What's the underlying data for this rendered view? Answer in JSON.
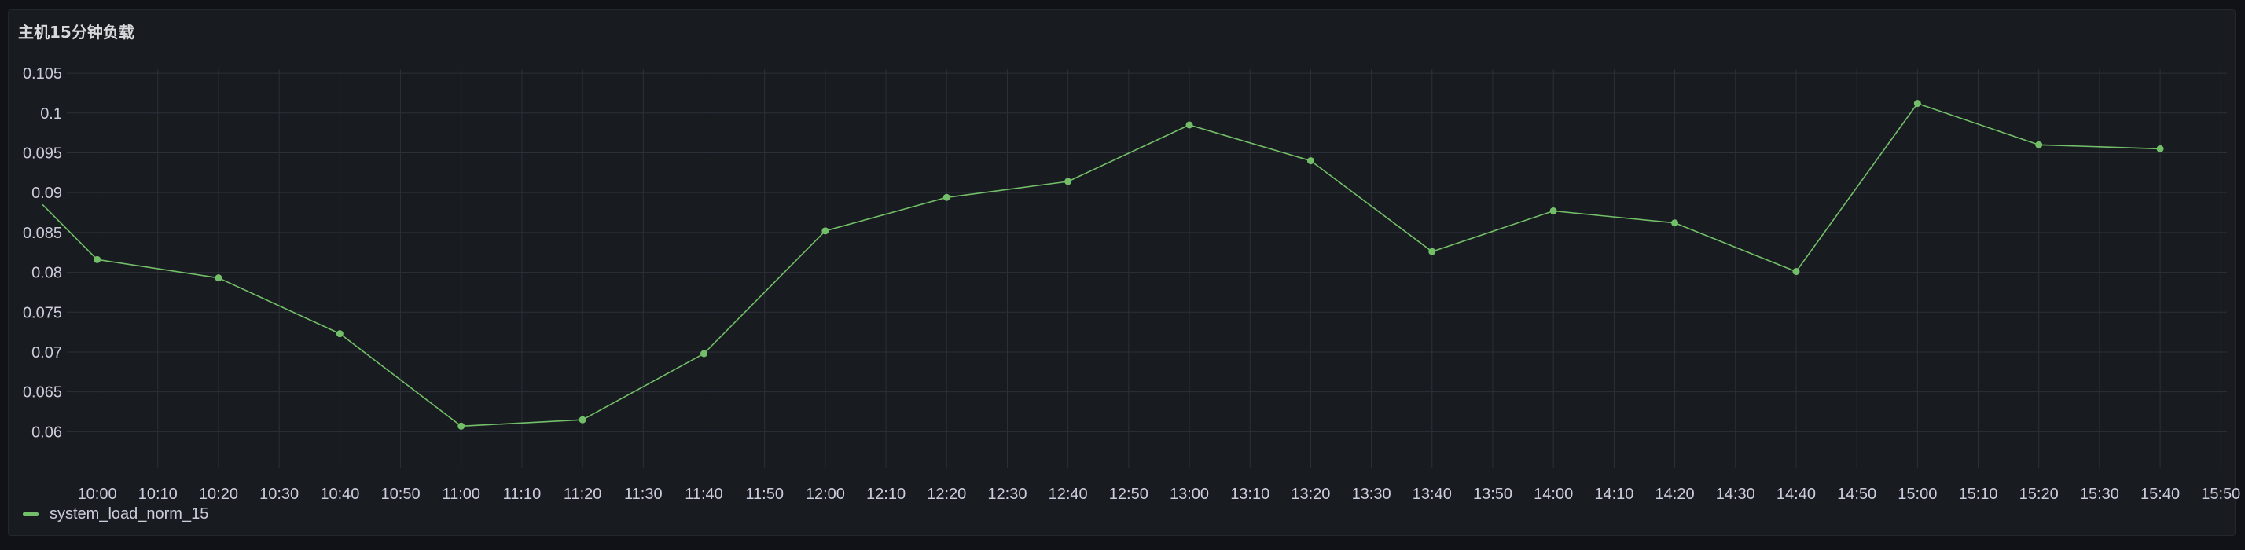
{
  "panel": {
    "title": "主机15分钟负载"
  },
  "colors": {
    "background": "#181b1f",
    "grid": "#2c3039",
    "series": "#73bf69",
    "text": "#ccccdc"
  },
  "chart_data": {
    "type": "line",
    "title": "主机15分钟负载",
    "xlabel": "",
    "ylabel": "",
    "ylim": [
      0.0555,
      0.1055
    ],
    "xlim": [
      "09:55",
      "15:51"
    ],
    "y_ticks": [
      "0.06",
      "0.065",
      "0.07",
      "0.075",
      "0.08",
      "0.085",
      "0.09",
      "0.095",
      "0.1",
      "0.105"
    ],
    "x_ticks": [
      "10:00",
      "10:10",
      "10:20",
      "10:30",
      "10:40",
      "10:50",
      "11:00",
      "11:10",
      "11:20",
      "11:30",
      "11:40",
      "11:50",
      "12:00",
      "12:10",
      "12:20",
      "12:30",
      "12:40",
      "12:50",
      "13:00",
      "13:10",
      "13:20",
      "13:30",
      "13:40",
      "13:50",
      "14:00",
      "14:10",
      "14:20",
      "14:30",
      "14:40",
      "14:50",
      "15:00",
      "15:10",
      "15:20",
      "15:30",
      "15:40",
      "15:50"
    ],
    "grid": true,
    "legend_position": "bottom-left",
    "series": [
      {
        "name": "system_load_norm_15",
        "x": [
          "09:51",
          "10:00",
          "10:20",
          "10:40",
          "11:00",
          "11:20",
          "11:40",
          "12:00",
          "12:20",
          "12:40",
          "13:00",
          "13:20",
          "13:40",
          "14:00",
          "14:20",
          "14:40",
          "15:00",
          "15:20",
          "15:40"
        ],
        "values": [
          0.0885,
          0.0816,
          0.0793,
          0.0723,
          0.0607,
          0.0615,
          0.0698,
          0.0852,
          0.0894,
          0.0914,
          0.0985,
          0.094,
          0.0826,
          0.0877,
          0.0862,
          0.0801,
          0.1012,
          0.096,
          0.0955
        ],
        "markers": [
          false,
          true,
          true,
          true,
          true,
          true,
          true,
          true,
          true,
          true,
          true,
          true,
          true,
          true,
          true,
          true,
          true,
          true,
          true
        ]
      }
    ]
  }
}
